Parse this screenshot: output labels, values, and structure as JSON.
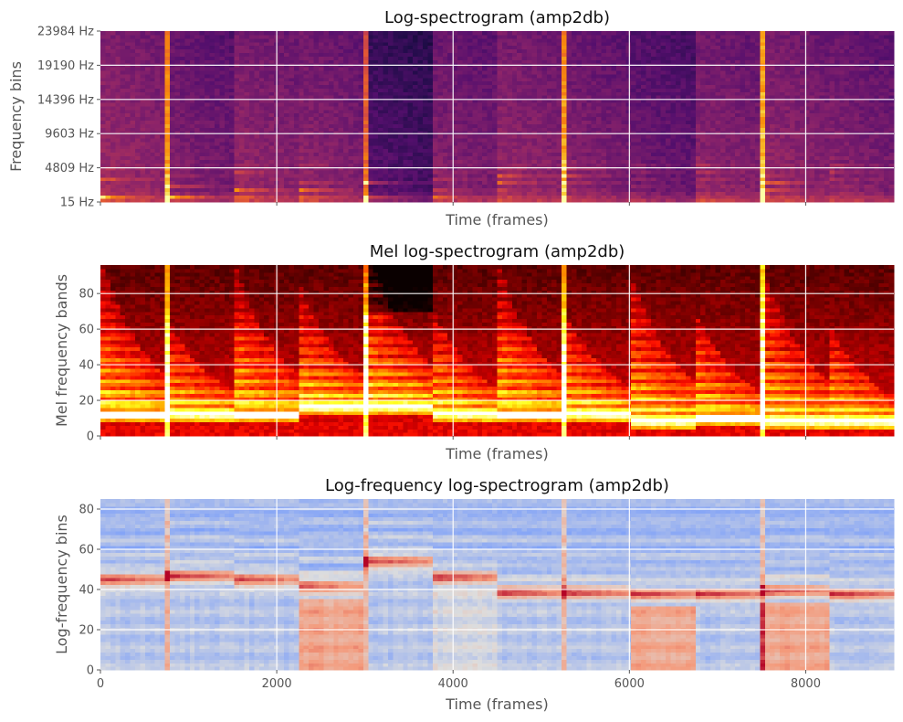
{
  "chart_data": [
    {
      "type": "heatmap",
      "title": "Log-spectrogram (amp2db)",
      "xlabel": "Time (frames)",
      "ylabel": "Frequency bins",
      "xlim": [
        0,
        9000
      ],
      "ylim": [
        15,
        23984
      ],
      "xticks": [
        0,
        2000,
        4000,
        6000,
        8000
      ],
      "xtick_labels_visible": false,
      "yticks": [
        15,
        4809,
        9603,
        14396,
        19190,
        23984
      ],
      "ytick_labels": [
        "15 Hz",
        "4809 Hz",
        "9603 Hz",
        "14396 Hz",
        "19190 Hz",
        "23984 Hz"
      ],
      "colormap": "inferno",
      "grid": true,
      "note_onsets": [
        0,
        750,
        1500,
        2250,
        3000,
        3750,
        4500,
        5250,
        6000,
        6750,
        7500,
        8250
      ]
    },
    {
      "type": "heatmap",
      "title": "Mel log-spectrogram (amp2db)",
      "xlabel": "Time (frames)",
      "ylabel": "Mel frequency bands",
      "xlim": [
        0,
        9000
      ],
      "ylim": [
        0,
        96
      ],
      "xticks": [
        0,
        2000,
        4000,
        6000,
        8000
      ],
      "xtick_labels_visible": false,
      "yticks": [
        0,
        20,
        40,
        60,
        80
      ],
      "ytick_labels": [
        "0",
        "20",
        "40",
        "60",
        "80"
      ],
      "colormap": "hot",
      "grid": true,
      "note_onsets": [
        0,
        750,
        1500,
        2250,
        3000,
        3750,
        4500,
        5250,
        6000,
        6750,
        7500,
        8250
      ]
    },
    {
      "type": "heatmap",
      "title": "Log-frequency log-spectrogram (amp2db)",
      "xlabel": "Time (frames)",
      "ylabel": "Log-frequency bins",
      "xlim": [
        0,
        9000
      ],
      "ylim": [
        0,
        85
      ],
      "xticks": [
        0,
        2000,
        4000,
        6000,
        8000
      ],
      "xtick_labels": [
        "0",
        "2000",
        "4000",
        "6000",
        "8000"
      ],
      "xtick_labels_visible": true,
      "yticks": [
        0,
        20,
        40,
        60,
        80
      ],
      "ytick_labels": [
        "0",
        "20",
        "40",
        "60",
        "80"
      ],
      "colormap": "coolwarm",
      "grid": true,
      "note_onsets": [
        0,
        750,
        1500,
        2250,
        3000,
        3750,
        4500,
        5250,
        6000,
        6750,
        7500,
        8250
      ],
      "note_band_centers": [
        45,
        47,
        45,
        42,
        54,
        46,
        39,
        39,
        38,
        38,
        40,
        38
      ]
    }
  ]
}
